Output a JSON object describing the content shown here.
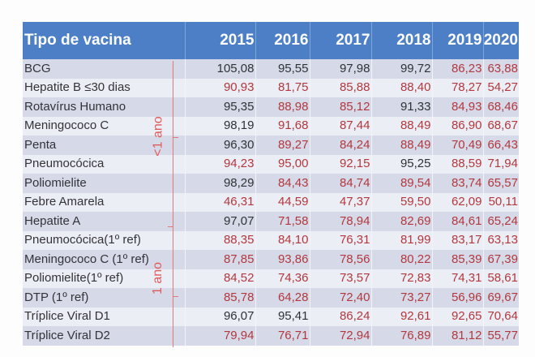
{
  "table": {
    "header": {
      "name_col": "Tipo de vacina",
      "years": [
        "2015",
        "2016",
        "2017",
        "2018",
        "2019",
        "2020"
      ]
    },
    "rows": [
      {
        "name": "BCG",
        "values": [
          "105,08",
          "95,55",
          "97,98",
          "99,72",
          "86,23",
          "63,88"
        ],
        "below_target": [
          false,
          false,
          false,
          false,
          true,
          true
        ]
      },
      {
        "name": "Hepatite B  ≤30 dias",
        "values": [
          "90,93",
          "81,75",
          "85,88",
          "88,40",
          "78,27",
          "54,27"
        ],
        "below_target": [
          true,
          true,
          true,
          true,
          true,
          true
        ]
      },
      {
        "name": "Rotavírus Humano",
        "values": [
          "95,35",
          "88,98",
          "85,12",
          "91,33",
          "84,93",
          "68,46"
        ],
        "below_target": [
          false,
          true,
          true,
          false,
          true,
          true
        ]
      },
      {
        "name": "Meningococo C",
        "values": [
          "98,19",
          "91,68",
          "87,44",
          "88,49",
          "86,90",
          "68,67"
        ],
        "below_target": [
          false,
          true,
          true,
          true,
          true,
          true
        ]
      },
      {
        "name": "Penta",
        "values": [
          "96,30",
          "89,27",
          "84,24",
          "88,49",
          "70,49",
          "66,43"
        ],
        "below_target": [
          false,
          true,
          true,
          true,
          true,
          true
        ]
      },
      {
        "name": "Pneumocócica",
        "values": [
          "94,23",
          "95,00",
          "92,15",
          "95,25",
          "88,59",
          "71,94"
        ],
        "below_target": [
          true,
          true,
          true,
          false,
          true,
          true
        ]
      },
      {
        "name": "Poliomielite",
        "values": [
          "98,29",
          "84,43",
          "84,74",
          "89,54",
          "83,74",
          "65,57"
        ],
        "below_target": [
          false,
          true,
          true,
          true,
          true,
          true
        ]
      },
      {
        "name": "Febre Amarela",
        "values": [
          "46,31",
          "44,59",
          "47,37",
          "59,50",
          "62,09",
          "50,11"
        ],
        "below_target": [
          true,
          true,
          true,
          true,
          true,
          true
        ]
      },
      {
        "name": "Hepatite A",
        "values": [
          "97,07",
          "71,58",
          "78,94",
          "82,69",
          "84,61",
          "65,24"
        ],
        "below_target": [
          false,
          true,
          true,
          true,
          true,
          true
        ]
      },
      {
        "name": "Pneumocócica(1º ref)",
        "values": [
          "88,35",
          "84,10",
          "76,31",
          "81,99",
          "83,17",
          "63,13"
        ],
        "below_target": [
          true,
          true,
          true,
          true,
          true,
          true
        ]
      },
      {
        "name": "Meningococo C (1º ref)",
        "values": [
          "87,85",
          "93,86",
          "78,56",
          "80,22",
          "85,39",
          "67,39"
        ],
        "below_target": [
          true,
          true,
          true,
          true,
          true,
          true
        ]
      },
      {
        "name": "Poliomielite(1º ref)",
        "values": [
          "84,52",
          "74,36",
          "73,57",
          "72,83",
          "74,31",
          "58,61"
        ],
        "below_target": [
          true,
          true,
          true,
          true,
          true,
          true
        ]
      },
      {
        "name": "DTP (1º ref)",
        "values": [
          "85,78",
          "64,28",
          "72,40",
          "73,27",
          "56,96",
          "69,67"
        ],
        "below_target": [
          true,
          true,
          true,
          true,
          true,
          true
        ]
      },
      {
        "name": "Tríplice Viral  D1",
        "values": [
          "96,07",
          "95,41",
          "86,24",
          "92,61",
          "92,65",
          "70,64"
        ],
        "below_target": [
          false,
          false,
          true,
          true,
          true,
          true
        ]
      },
      {
        "name": "Tríplice Viral  D2",
        "values": [
          "79,94",
          "76,71",
          "72,94",
          "76,89",
          "81,12",
          "55,77"
        ],
        "below_target": [
          true,
          true,
          true,
          true,
          true,
          true
        ]
      }
    ]
  },
  "groups": [
    {
      "label": "<1 ano",
      "first_row": 0,
      "last_row": 8
    },
    {
      "label": "1 ano",
      "first_row": 9,
      "last_row": 14
    }
  ],
  "colors": {
    "header_bg": "#4c7fc6",
    "header_text": "#ffffff",
    "row_odd": "#d6dae8",
    "row_even": "#eceef5",
    "value_ok": "#2f3336",
    "value_below": "#b2383e",
    "annotation": "#e05a5a"
  }
}
